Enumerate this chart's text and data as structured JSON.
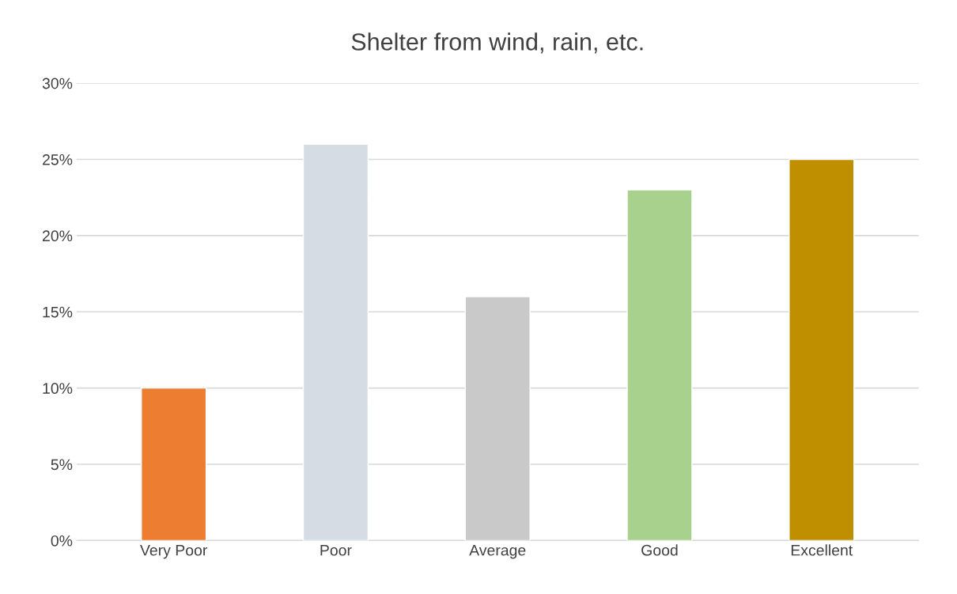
{
  "chart_data": {
    "type": "bar",
    "title": "Shelter from wind, rain, etc.",
    "categories": [
      "Very Poor",
      "Poor",
      "Average",
      "Good",
      "Excellent"
    ],
    "values": [
      10,
      26,
      16,
      23,
      25
    ],
    "colors": [
      "#ed7d31",
      "#d6dce4",
      "#c9c9c9",
      "#a9d18e",
      "#bf8f00"
    ],
    "ylim": [
      0,
      30
    ],
    "yticks": [
      {
        "value": 0,
        "label": "0%"
      },
      {
        "value": 5,
        "label": "5%"
      },
      {
        "value": 10,
        "label": "10%"
      },
      {
        "value": 15,
        "label": "15%"
      },
      {
        "value": 20,
        "label": "20%"
      },
      {
        "value": 25,
        "label": "25%"
      },
      {
        "value": 30,
        "label": "30%"
      }
    ],
    "grid": "y",
    "legend": false
  }
}
